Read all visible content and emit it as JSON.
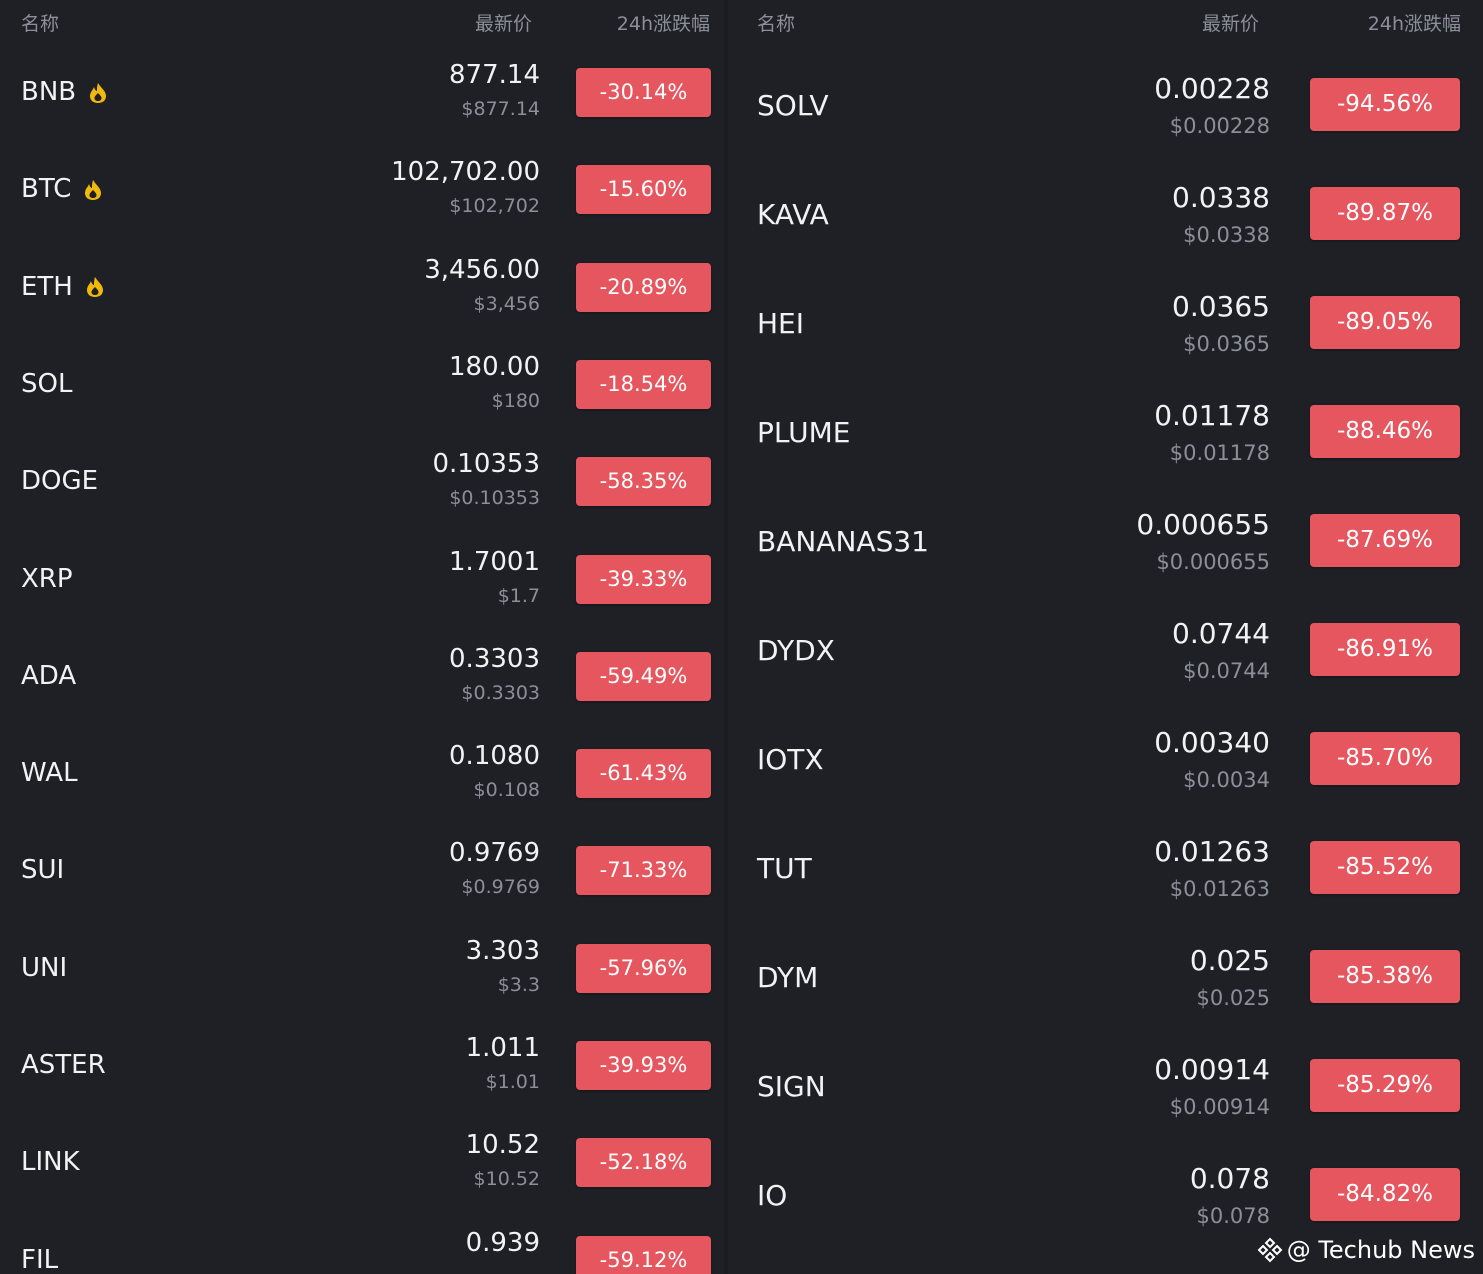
{
  "left": {
    "header": {
      "name": "名称",
      "price": "最新价",
      "change": "24h涨跌幅"
    },
    "rows": [
      {
        "symbol": "BNB",
        "hot": true,
        "price": "877.14",
        "usd": "$877.14",
        "change": "-30.14%"
      },
      {
        "symbol": "BTC",
        "hot": true,
        "price": "102,702.00",
        "usd": "$102,702",
        "change": "-15.60%"
      },
      {
        "symbol": "ETH",
        "hot": true,
        "price": "3,456.00",
        "usd": "$3,456",
        "change": "-20.89%"
      },
      {
        "symbol": "SOL",
        "hot": false,
        "price": "180.00",
        "usd": "$180",
        "change": "-18.54%"
      },
      {
        "symbol": "DOGE",
        "hot": false,
        "price": "0.10353",
        "usd": "$0.10353",
        "change": "-58.35%"
      },
      {
        "symbol": "XRP",
        "hot": false,
        "price": "1.7001",
        "usd": "$1.7",
        "change": "-39.33%"
      },
      {
        "symbol": "ADA",
        "hot": false,
        "price": "0.3303",
        "usd": "$0.3303",
        "change": "-59.49%"
      },
      {
        "symbol": "WAL",
        "hot": false,
        "price": "0.1080",
        "usd": "$0.108",
        "change": "-61.43%"
      },
      {
        "symbol": "SUI",
        "hot": false,
        "price": "0.9769",
        "usd": "$0.9769",
        "change": "-71.33%"
      },
      {
        "symbol": "UNI",
        "hot": false,
        "price": "3.303",
        "usd": "$3.3",
        "change": "-57.96%"
      },
      {
        "symbol": "ASTER",
        "hot": false,
        "price": "1.011",
        "usd": "$1.01",
        "change": "-39.93%"
      },
      {
        "symbol": "LINK",
        "hot": false,
        "price": "10.52",
        "usd": "$10.52",
        "change": "-52.18%"
      },
      {
        "symbol": "FIL",
        "hot": false,
        "price": "0.939",
        "usd": "",
        "change": "-59.12%"
      }
    ]
  },
  "right": {
    "header": {
      "name": "名称",
      "price": "最新价",
      "change": "24h涨跌幅"
    },
    "rows": [
      {
        "symbol": "SOLV",
        "price": "0.00228",
        "usd": "$0.00228",
        "change": "-94.56%"
      },
      {
        "symbol": "KAVA",
        "price": "0.0338",
        "usd": "$0.0338",
        "change": "-89.87%"
      },
      {
        "symbol": "HEI",
        "price": "0.0365",
        "usd": "$0.0365",
        "change": "-89.05%"
      },
      {
        "symbol": "PLUME",
        "price": "0.01178",
        "usd": "$0.01178",
        "change": "-88.46%"
      },
      {
        "symbol": "BANANAS31",
        "price": "0.000655",
        "usd": "$0.000655",
        "change": "-87.69%"
      },
      {
        "symbol": "DYDX",
        "price": "0.0744",
        "usd": "$0.0744",
        "change": "-86.91%"
      },
      {
        "symbol": "IOTX",
        "price": "0.00340",
        "usd": "$0.0034",
        "change": "-85.70%"
      },
      {
        "symbol": "TUT",
        "price": "0.01263",
        "usd": "$0.01263",
        "change": "-85.52%"
      },
      {
        "symbol": "DYM",
        "price": "0.025",
        "usd": "$0.025",
        "change": "-85.38%"
      },
      {
        "symbol": "SIGN",
        "price": "0.00914",
        "usd": "$0.00914",
        "change": "-85.29%"
      },
      {
        "symbol": "IO",
        "price": "0.078",
        "usd": "$0.078",
        "change": "-84.82%"
      }
    ]
  },
  "watermark": "@ Techub News",
  "colors": {
    "background": "#1e2026",
    "badge": "#e5565f",
    "muted_text": "#8b8f98",
    "hot_icon": "#f0b90b"
  },
  "icons": {
    "hot": "fire-icon",
    "watermark": "techub-logo-icon"
  }
}
